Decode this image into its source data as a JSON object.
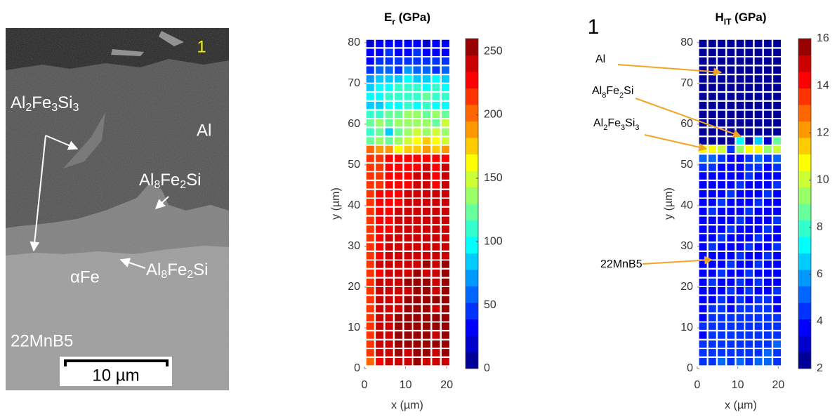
{
  "micrograph": {
    "panel": "1",
    "labels": {
      "al2fe3si3": [
        "Al",
        "2",
        "Fe",
        "3",
        "Si",
        "3"
      ],
      "al": "Al",
      "al8fe2si_upper": [
        "Al",
        "8",
        "Fe",
        "2",
        "Si"
      ],
      "alpha_fe": "αFe",
      "al8fe2si_lower": [
        "Al",
        "8",
        "Fe",
        "2",
        "Si"
      ],
      "substrate": "22MnB5"
    },
    "scale_bar": "10 µm"
  },
  "chart_data": [
    {
      "type": "heatmap",
      "title": [
        "E",
        "r",
        " (GPa)"
      ],
      "x_label": "x (µm)",
      "y_label": "y (µm)",
      "colormap": "jet",
      "levels": 20,
      "clim": [
        0,
        260
      ],
      "cticks": [
        0,
        50,
        100,
        150,
        200,
        250
      ],
      "xlim": [
        0,
        21.5
      ],
      "ylim": [
        0,
        81
      ],
      "xticks": [
        0,
        10,
        20
      ],
      "yticks": [
        0,
        10,
        20,
        30,
        40,
        50,
        60,
        70,
        80
      ],
      "x": [
        1.4,
        3.7,
        6.0,
        8.3,
        10.6,
        12.8,
        15.1,
        17.4,
        19.7
      ],
      "y": [
        1.7,
        3.9,
        6.0,
        8.2,
        10.4,
        12.5,
        14.7,
        16.9,
        19.1,
        21.2,
        23.4,
        25.6,
        27.7,
        29.9,
        32.1,
        34.2,
        36.4,
        38.6,
        40.8,
        42.9,
        45.1,
        47.3,
        49.4,
        51.6,
        53.8,
        55.9,
        58.1,
        60.3,
        62.4,
        64.6,
        66.8,
        69.0,
        71.1,
        73.3,
        75.5,
        77.6,
        79.8
      ],
      "z": [
        [
          205,
          230,
          240,
          245,
          240,
          248,
          245,
          240,
          245
        ],
        [
          210,
          235,
          242,
          250,
          245,
          252,
          248,
          245,
          250
        ],
        [
          215,
          238,
          245,
          248,
          250,
          255,
          250,
          248,
          252
        ],
        [
          212,
          240,
          243,
          250,
          248,
          252,
          250,
          245,
          252
        ],
        [
          215,
          238,
          245,
          250,
          250,
          250,
          248,
          250,
          255
        ],
        [
          218,
          240,
          245,
          248,
          250,
          252,
          250,
          248,
          252
        ],
        [
          215,
          238,
          242,
          245,
          248,
          250,
          250,
          245,
          250
        ],
        [
          218,
          235,
          240,
          245,
          248,
          250,
          248,
          248,
          250
        ],
        [
          220,
          235,
          242,
          245,
          245,
          250,
          248,
          245,
          248
        ],
        [
          218,
          238,
          240,
          245,
          248,
          248,
          250,
          245,
          250
        ],
        [
          215,
          232,
          240,
          242,
          245,
          248,
          245,
          242,
          248
        ],
        [
          218,
          235,
          238,
          242,
          245,
          245,
          248,
          245,
          248
        ],
        [
          215,
          230,
          238,
          240,
          242,
          245,
          245,
          240,
          245
        ],
        [
          212,
          230,
          235,
          240,
          242,
          245,
          245,
          242,
          245
        ],
        [
          215,
          228,
          235,
          238,
          240,
          242,
          242,
          240,
          245
        ],
        [
          210,
          228,
          232,
          238,
          240,
          242,
          245,
          240,
          242
        ],
        [
          212,
          225,
          232,
          235,
          238,
          240,
          242,
          238,
          242
        ],
        [
          208,
          225,
          230,
          235,
          238,
          240,
          240,
          238,
          240
        ],
        [
          210,
          222,
          230,
          232,
          235,
          238,
          240,
          235,
          240
        ],
        [
          212,
          222,
          228,
          232,
          235,
          238,
          238,
          235,
          238
        ],
        [
          210,
          220,
          225,
          230,
          232,
          235,
          238,
          232,
          238
        ],
        [
          208,
          220,
          225,
          228,
          232,
          235,
          235,
          232,
          235
        ],
        [
          210,
          218,
          222,
          228,
          230,
          232,
          235,
          230,
          235
        ],
        [
          208,
          218,
          222,
          225,
          230,
          232,
          232,
          230,
          232
        ],
        [
          195,
          190,
          185,
          165,
          180,
          175,
          185,
          180,
          190
        ],
        [
          120,
          135,
          125,
          130,
          150,
          160,
          170,
          165,
          145
        ],
        [
          115,
          125,
          90,
          120,
          140,
          150,
          130,
          145,
          135
        ],
        [
          120,
          130,
          125,
          135,
          140,
          130,
          140,
          125,
          150
        ],
        [
          110,
          115,
          120,
          125,
          130,
          135,
          120,
          130,
          125
        ],
        [
          80,
          90,
          95,
          100,
          105,
          100,
          110,
          100,
          95
        ],
        [
          95,
          100,
          105,
          110,
          115,
          110,
          120,
          105,
          110
        ],
        [
          85,
          95,
          100,
          105,
          110,
          105,
          100,
          110,
          95
        ],
        [
          70,
          80,
          85,
          90,
          95,
          90,
          85,
          95,
          80
        ],
        [
          45,
          55,
          60,
          50,
          65,
          55,
          60,
          50,
          55
        ],
        [
          35,
          40,
          45,
          40,
          50,
          45,
          40,
          45,
          40
        ],
        [
          30,
          35,
          40,
          35,
          30,
          40,
          35,
          30,
          35
        ],
        [
          25,
          30,
          35,
          30,
          35,
          30,
          25,
          30,
          30
        ]
      ]
    },
    {
      "type": "heatmap",
      "panel": "1",
      "title": [
        "H",
        "IT",
        " (GPa)"
      ],
      "x_label": "x (µm)",
      "y_label": "y (µm)",
      "colormap": "jet",
      "levels": 20,
      "clim": [
        2,
        16
      ],
      "cticks": [
        2,
        4,
        6,
        8,
        10,
        12,
        14,
        16
      ],
      "xlim": [
        0,
        21.5
      ],
      "ylim": [
        0,
        81
      ],
      "xticks": [
        0,
        10,
        20
      ],
      "yticks": [
        0,
        10,
        20,
        30,
        40,
        50,
        60,
        70,
        80
      ],
      "x": [
        1.4,
        3.7,
        6.0,
        8.3,
        10.6,
        12.8,
        15.1,
        17.4,
        19.7
      ],
      "y": [
        1.7,
        3.9,
        6.0,
        8.2,
        10.4,
        12.5,
        14.7,
        16.9,
        19.1,
        21.2,
        23.4,
        25.6,
        27.7,
        29.9,
        32.1,
        34.2,
        36.4,
        38.6,
        40.8,
        42.9,
        45.1,
        47.3,
        49.4,
        51.6,
        53.8,
        55.9,
        58.1,
        60.3,
        62.4,
        64.6,
        66.8,
        69.0,
        71.1,
        73.3,
        75.5,
        77.6,
        79.8
      ],
      "z": [
        [
          4.5,
          4.8,
          5.0,
          4.6,
          4.9,
          4.7,
          5.0,
          5.3,
          4.8
        ],
        [
          4.2,
          4.6,
          4.5,
          4.8,
          4.4,
          4.6,
          4.7,
          5.2,
          4.5
        ],
        [
          4.3,
          4.5,
          4.7,
          4.4,
          4.6,
          4.8,
          4.5,
          4.6,
          4.9
        ],
        [
          4.0,
          4.4,
          4.3,
          4.6,
          4.2,
          4.5,
          4.4,
          4.3,
          4.6
        ],
        [
          4.2,
          4.3,
          4.5,
          4.2,
          4.4,
          4.3,
          4.6,
          4.4,
          4.2
        ],
        [
          4.1,
          4.4,
          4.2,
          4.3,
          4.5,
          4.2,
          4.3,
          4.5,
          4.3
        ],
        [
          4.0,
          4.2,
          4.4,
          4.1,
          4.3,
          4.4,
          4.2,
          4.3,
          4.1
        ],
        [
          3.9,
          4.1,
          4.2,
          4.0,
          4.2,
          4.1,
          4.3,
          4.2,
          4.0
        ],
        [
          3.8,
          4.0,
          4.1,
          4.2,
          4.0,
          4.2,
          4.1,
          4.0,
          4.2
        ],
        [
          3.9,
          4.2,
          4.0,
          4.1,
          4.3,
          4.0,
          4.2,
          4.1,
          3.9
        ],
        [
          3.8,
          4.0,
          4.2,
          4.0,
          4.1,
          4.2,
          4.0,
          4.1,
          4.0
        ],
        [
          3.9,
          4.1,
          4.0,
          4.2,
          4.0,
          4.1,
          4.2,
          4.0,
          4.1
        ],
        [
          3.8,
          4.0,
          4.1,
          4.0,
          4.2,
          4.0,
          4.1,
          4.2,
          4.0
        ],
        [
          3.9,
          4.2,
          4.0,
          4.1,
          4.0,
          4.2,
          4.0,
          4.1,
          4.2
        ],
        [
          3.8,
          4.0,
          4.2,
          4.1,
          4.0,
          4.1,
          4.2,
          4.0,
          4.1
        ],
        [
          3.9,
          4.1,
          4.0,
          4.2,
          4.1,
          4.0,
          4.1,
          4.2,
          4.0
        ],
        [
          3.8,
          4.0,
          4.1,
          4.0,
          4.2,
          4.1,
          4.0,
          4.1,
          4.2
        ],
        [
          3.9,
          4.2,
          4.0,
          4.1,
          4.0,
          4.2,
          4.1,
          4.0,
          4.1
        ],
        [
          3.8,
          4.0,
          4.2,
          4.0,
          4.1,
          4.0,
          4.2,
          4.1,
          4.0
        ],
        [
          3.9,
          4.1,
          4.0,
          4.2,
          4.0,
          4.1,
          4.0,
          4.2,
          4.1
        ],
        [
          3.8,
          4.0,
          4.1,
          4.0,
          4.2,
          4.0,
          4.1,
          4.0,
          4.2
        ],
        [
          3.9,
          4.1,
          4.0,
          4.1,
          4.0,
          4.2,
          4.0,
          4.1,
          4.0
        ],
        [
          4.2,
          4.3,
          4.1,
          3.9,
          3.8,
          4.2,
          4.3,
          4.1,
          4.4
        ],
        [
          5.0,
          5.2,
          4.8,
          4.0,
          3.6,
          4.5,
          5.0,
          4.8,
          5.2
        ],
        [
          10.5,
          10.8,
          9.8,
          4.2,
          9.5,
          11.0,
          10.5,
          9.5,
          10.2
        ],
        [
          2.4,
          2.3,
          2.4,
          2.3,
          7.2,
          2.6,
          6.8,
          3.0,
          8.8
        ],
        [
          2.2,
          2.2,
          2.3,
          2.2,
          2.2,
          2.3,
          2.2,
          2.2,
          2.3
        ],
        [
          2.2,
          2.3,
          2.2,
          2.2,
          2.3,
          2.2,
          2.2,
          2.3,
          2.2
        ],
        [
          2.3,
          2.2,
          2.2,
          2.3,
          2.2,
          2.2,
          2.3,
          2.2,
          2.2
        ],
        [
          2.2,
          2.2,
          2.3,
          2.2,
          2.2,
          2.3,
          2.2,
          2.2,
          2.3
        ],
        [
          2.2,
          2.3,
          2.2,
          2.2,
          2.3,
          2.2,
          2.2,
          2.3,
          2.2
        ],
        [
          2.3,
          2.2,
          2.2,
          2.3,
          2.2,
          2.2,
          2.3,
          2.2,
          2.2
        ],
        [
          2.2,
          2.2,
          2.3,
          2.2,
          2.2,
          2.3,
          2.2,
          2.2,
          2.3
        ],
        [
          2.2,
          2.3,
          2.2,
          2.2,
          2.3,
          2.2,
          2.2,
          2.3,
          2.2
        ],
        [
          2.3,
          2.2,
          2.2,
          2.3,
          2.2,
          2.2,
          2.3,
          2.2,
          2.2
        ],
        [
          2.2,
          2.2,
          2.3,
          2.2,
          2.2,
          2.3,
          2.2,
          2.2,
          2.3
        ],
        [
          2.2,
          2.3,
          2.2,
          2.2,
          2.3,
          2.2,
          2.2,
          2.3,
          2.2
        ]
      ],
      "annotations": [
        [
          "Al"
        ],
        [
          "Al",
          "8",
          "Fe",
          "2",
          "Si"
        ],
        [
          "Al",
          "2",
          "Fe",
          "3",
          "Si",
          "3"
        ],
        [
          "22MnB5"
        ]
      ]
    }
  ]
}
